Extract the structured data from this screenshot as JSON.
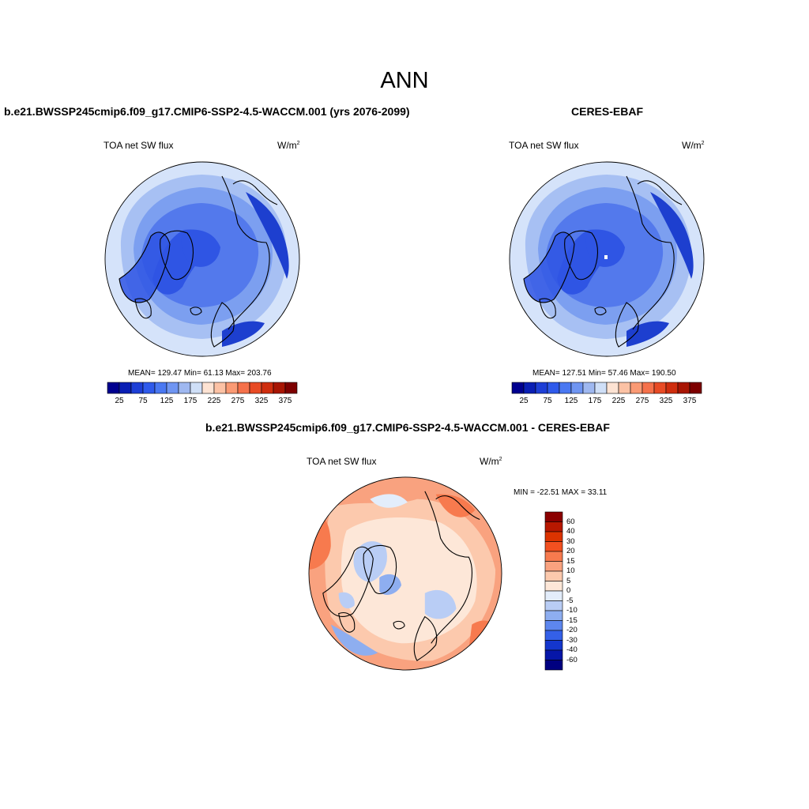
{
  "figure": {
    "title": "ANN"
  },
  "panels": [
    {
      "id": "model",
      "title": "b.e21.BWSSP245cmip6.f09_g17.CMIP6-SSP2-4.5-WACCM.001 (yrs 2076-2099)",
      "variable": "TOA net SW flux",
      "units_base": "W/m",
      "units_exp": "2",
      "stats": {
        "mean": "129.47",
        "min": "61.13",
        "max": "203.76"
      },
      "stats_text": "MEAN= 129.47  Min=  61.13  Max= 203.76"
    },
    {
      "id": "obs",
      "title": "CERES-EBAF",
      "variable": "TOA net SW flux",
      "units_base": "W/m",
      "units_exp": "2",
      "stats": {
        "mean": "127.51",
        "min": "57.46",
        "max": "190.50"
      },
      "stats_text": "MEAN= 127.51  Min=  57.46  Max= 190.50"
    },
    {
      "id": "diff",
      "title": "b.e21.BWSSP245cmip6.f09_g17.CMIP6-SSP2-4.5-WACCM.001 - CERES-EBAF",
      "variable": "TOA net SW flux",
      "units_base": "W/m",
      "units_exp": "2",
      "stats": {
        "min": "-22.51",
        "max": "33.11"
      },
      "stats_text": "MIN = -22.51 MAX =  33.11"
    }
  ],
  "colorbars": {
    "field": {
      "labels": [
        "25",
        "75",
        "125",
        "175",
        "225",
        "275",
        "325",
        "375"
      ],
      "colors": [
        "#00008f",
        "#0a1fb4",
        "#1e3fd6",
        "#2f5aeb",
        "#4a78f2",
        "#6f95f2",
        "#9fb8f0",
        "#cfdff7",
        "#fde3d3",
        "#fcc2a5",
        "#fa9a74",
        "#f5714b",
        "#e84b25",
        "#cf2d0e",
        "#a81503",
        "#7d0000"
      ]
    },
    "diff": {
      "labels": [
        "60",
        "40",
        "30",
        "20",
        "15",
        "10",
        "5",
        "0",
        "-5",
        "-10",
        "-15",
        "-20",
        "-30",
        "-40",
        "-60"
      ],
      "colors_top_to_bottom": [
        "#8b0000",
        "#b81800",
        "#dc3300",
        "#f25020",
        "#f77a4e",
        "#f9a27f",
        "#fcc9ad",
        "#fde7d8",
        "#e3edfb",
        "#b9cdf5",
        "#8eaef0",
        "#5d86ee",
        "#3460e8",
        "#1436cc",
        "#0616a8",
        "#000080"
      ]
    }
  }
}
